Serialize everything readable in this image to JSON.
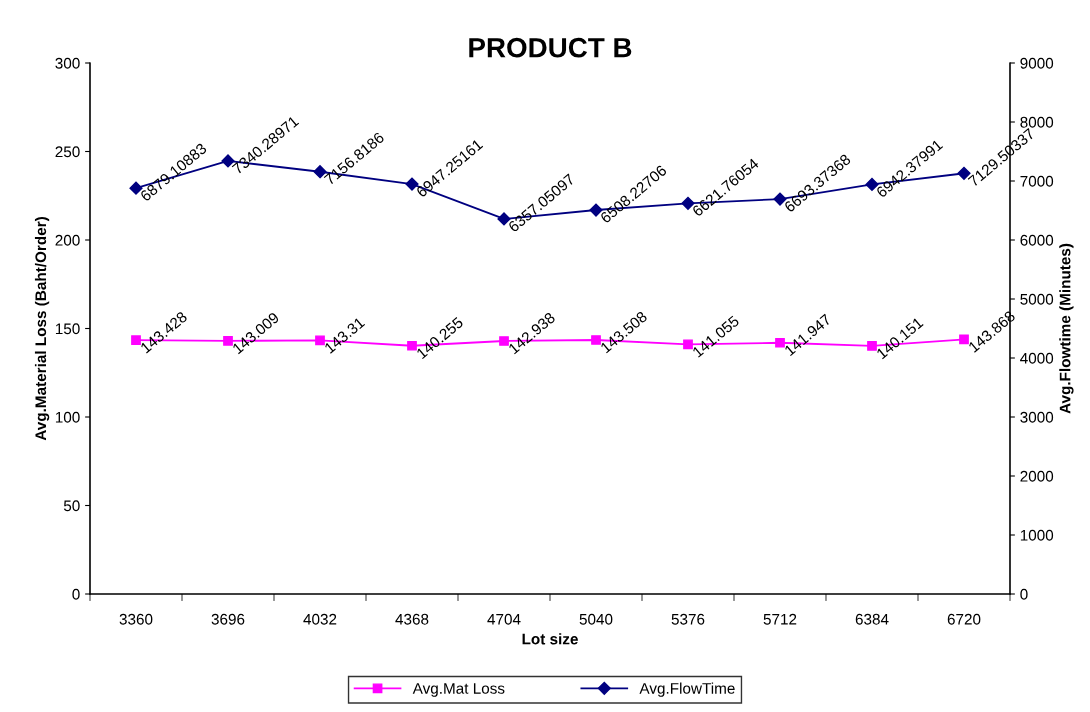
{
  "chart_data": {
    "type": "line",
    "title": "PRODUCT B",
    "xlabel": "Lot size",
    "ylabel": "Avg.Material Loss (Baht/Order)",
    "y2label": "Avg.Flowtime (Minutes)",
    "categories": [
      "3360",
      "3696",
      "4032",
      "4368",
      "4704",
      "5040",
      "5376",
      "5712",
      "6384",
      "6720"
    ],
    "series": [
      {
        "name": "Avg.Mat Loss",
        "color": "#ff00ff",
        "marker": "square",
        "values": [
          143.428,
          143.009,
          143.31,
          140.255,
          142.938,
          143.508,
          141.055,
          141.947,
          140.151,
          143.868
        ]
      },
      {
        "name": "Avg.FlowTime",
        "color": "#000080",
        "marker": "diamond",
        "axis": "y2",
        "values": [
          6879.10883,
          7340.28971,
          7156.8186,
          6947.25161,
          6357.05097,
          6508.22706,
          6621.76054,
          6693.37368,
          6942.37991,
          7129.50337
        ]
      }
    ],
    "ylim": [
      0,
      300
    ],
    "yticks": [
      0,
      50,
      100,
      150,
      200,
      250,
      300
    ],
    "y2lim": [
      0,
      9000
    ],
    "y2ticks": [
      0,
      1000,
      2000,
      3000,
      4000,
      5000,
      6000,
      7000,
      8000,
      9000
    ],
    "data_labels": true,
    "grid": false,
    "legend": "bottom",
    "line_style": "solid"
  }
}
